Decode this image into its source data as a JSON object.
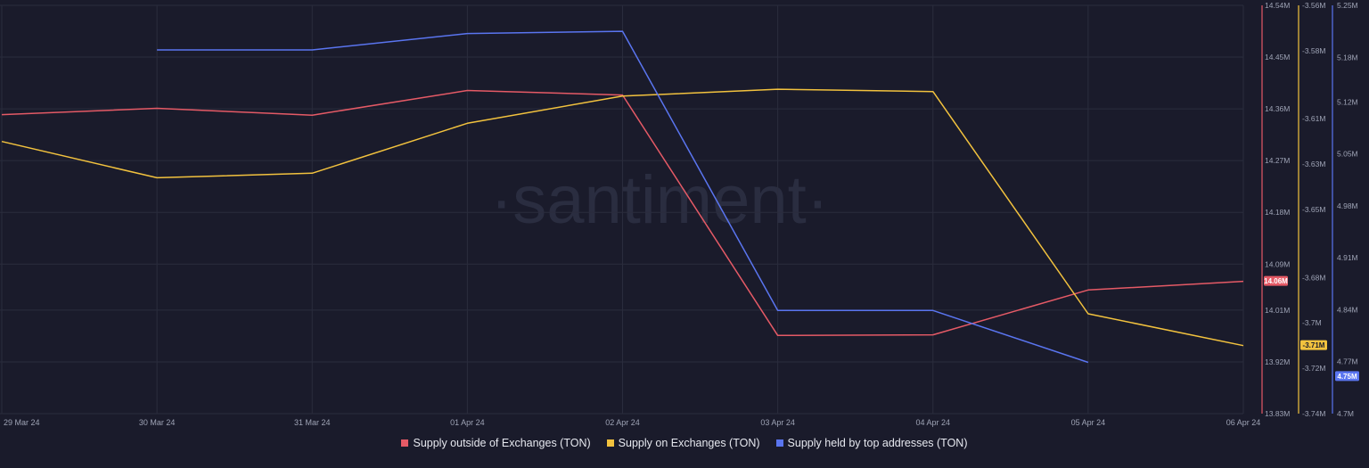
{
  "watermark": "·santiment·",
  "colors": {
    "background": "#1a1b2b",
    "grid": "#2a2c3d",
    "tick_text": "#9ea3b5",
    "outside": "#e55a66",
    "on_exchanges": "#f2c23e",
    "top_addresses": "#5a75f0"
  },
  "chart_data": {
    "type": "line",
    "x": [
      "29 Mar 24",
      "30 Mar 24",
      "31 Mar 24",
      "01 Apr 24",
      "02 Apr 24",
      "03 Apr 24",
      "04 Apr 24",
      "05 Apr 24",
      "06 Apr 24"
    ],
    "series": [
      {
        "name": "Supply outside of Exchanges (TON)",
        "axis": "left",
        "color": "#e55a66",
        "values": [
          14.35,
          14.361,
          14.349,
          14.392,
          14.384,
          13.966,
          13.967,
          14.045,
          14.06
        ],
        "last_label": "14.06M"
      },
      {
        "name": "Supply on Exchanges (TON)",
        "axis": "middle",
        "color": "#f2c23e",
        "values": [
          -3.62,
          -3.636,
          -3.634,
          -3.612,
          -3.6,
          -3.597,
          -3.598,
          -3.696,
          -3.71
        ],
        "last_label": "-3.71M"
      },
      {
        "name": "Supply held by top addresses (TON)",
        "axis": "right",
        "color": "#5a75f0",
        "values": [
          null,
          5.19,
          5.19,
          5.212,
          5.215,
          4.839,
          4.839,
          4.769,
          null
        ],
        "last_label": "4.75M"
      }
    ],
    "axes": {
      "left": {
        "range": [
          13.83,
          14.54
        ],
        "ticks": [
          14.54,
          14.45,
          14.36,
          14.27,
          14.18,
          14.09,
          14.01,
          13.92,
          13.83
        ],
        "tick_labels": [
          "14.54M",
          "14.45M",
          "14.36M",
          "14.27M",
          "14.18M",
          "14.09M",
          "14.01M",
          "13.92M",
          "13.83M"
        ]
      },
      "middle": {
        "range": [
          -3.74,
          -3.56
        ],
        "ticks": [
          -3.56,
          -3.58,
          -3.61,
          -3.63,
          -3.65,
          -3.68,
          -3.7,
          -3.72,
          -3.74
        ],
        "tick_labels": [
          "-3.56M",
          "-3.58M",
          "-3.61M",
          "-3.63M",
          "-3.65M",
          "-3.68M",
          "-3.7M",
          "-3.72M",
          "-3.74M"
        ]
      },
      "right": {
        "range": [
          4.7,
          5.25
        ],
        "ticks": [
          5.25,
          5.18,
          5.12,
          5.05,
          4.98,
          4.91,
          4.84,
          4.77,
          4.7
        ],
        "tick_labels": [
          "5.25M",
          "5.18M",
          "5.12M",
          "5.05M",
          "4.98M",
          "4.91M",
          "4.84M",
          "4.77M",
          "4.7M"
        ]
      }
    },
    "grid": true,
    "legend_position": "bottom-center"
  },
  "legend": [
    {
      "label": "Supply outside of Exchanges (TON)",
      "color": "#e55a66"
    },
    {
      "label": "Supply on Exchanges (TON)",
      "color": "#f2c23e"
    },
    {
      "label": "Supply held by top addresses (TON)",
      "color": "#5a75f0"
    }
  ]
}
